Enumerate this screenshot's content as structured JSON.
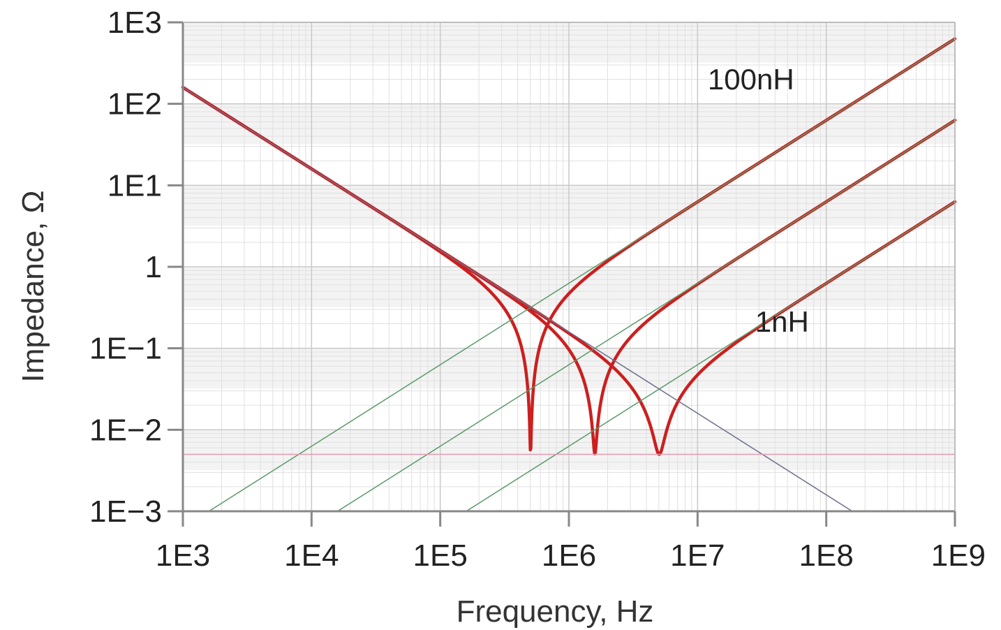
{
  "chart_data": {
    "type": "line",
    "title": "",
    "xlabel": "Frequency, Hz",
    "ylabel": "Impedance, Ω",
    "x_scale": "log",
    "y_scale": "log",
    "xlim": [
      1000,
      1000000000
    ],
    "ylim": [
      0.001,
      1000
    ],
    "grid": true,
    "x_ticks": [
      {
        "value": 1000,
        "label": "1E3"
      },
      {
        "value": 10000,
        "label": "1E4"
      },
      {
        "value": 100000,
        "label": "1E5"
      },
      {
        "value": 1000000,
        "label": "1E6"
      },
      {
        "value": 10000000,
        "label": "1E7"
      },
      {
        "value": 100000000,
        "label": "1E8"
      },
      {
        "value": 1000000000,
        "label": "1E9"
      }
    ],
    "y_ticks": [
      {
        "value": 1000,
        "label": "1E3"
      },
      {
        "value": 100,
        "label": "1E2"
      },
      {
        "value": 10,
        "label": "1E1"
      },
      {
        "value": 1,
        "label": "1"
      },
      {
        "value": 0.1,
        "label": "1E−1"
      },
      {
        "value": 0.01,
        "label": "1E−2"
      },
      {
        "value": 0.001,
        "label": "1E−3"
      }
    ],
    "series": [
      {
        "kind": "total",
        "L": 1e-07,
        "C": 1e-06,
        "R": 0.005,
        "color": "#cc1f1f"
      },
      {
        "kind": "total",
        "L": 1e-08,
        "C": 1e-06,
        "R": 0.005,
        "color": "#cc1f1f"
      },
      {
        "kind": "total",
        "L": 1e-09,
        "C": 1e-06,
        "R": 0.005,
        "color": "#cc1f1f"
      },
      {
        "kind": "inductive",
        "L": 1e-07,
        "color": "#5a9a6a"
      },
      {
        "kind": "inductive",
        "L": 1e-08,
        "color": "#5a9a6a"
      },
      {
        "kind": "inductive",
        "L": 1e-09,
        "color": "#5a9a6a"
      },
      {
        "kind": "capacitive",
        "C": 1e-06,
        "color": "#6e6e8a"
      },
      {
        "kind": "resistive",
        "R": 0.005,
        "color": "#e59ab2"
      }
    ],
    "annotations": [
      {
        "text": "100nH",
        "x": 12000000,
        "y": 150
      },
      {
        "text": "1nH",
        "x": 28000000,
        "y": 0.16
      }
    ]
  }
}
